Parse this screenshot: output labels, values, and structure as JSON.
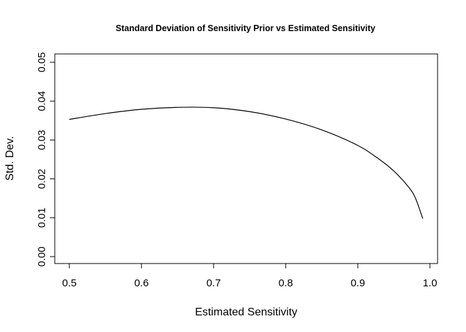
{
  "chart_data": {
    "type": "line",
    "title": "Standard Deviation of Sensitivity Prior vs Estimated Sensitivity",
    "xlabel": "Estimated Sensitivity",
    "ylabel": "Std. Dev.",
    "xlim": [
      0.48,
      1.0
    ],
    "ylim": [
      0.0,
      0.05
    ],
    "x_ticks": [
      "0.5",
      "0.6",
      "0.7",
      "0.8",
      "0.9",
      "1.0"
    ],
    "y_ticks": [
      "0.00",
      "0.01",
      "0.02",
      "0.03",
      "0.04",
      "0.05"
    ],
    "grid": false,
    "legend": "none",
    "line_color": "#000000",
    "series": [
      {
        "x": [
          0.5,
          0.55,
          0.6,
          0.65,
          0.7,
          0.75,
          0.8,
          0.85,
          0.9,
          0.93,
          0.95,
          0.97,
          0.98,
          0.99
        ],
        "values": [
          0.0353,
          0.0368,
          0.0379,
          0.0384,
          0.0383,
          0.0373,
          0.0354,
          0.0326,
          0.0286,
          0.025,
          0.022,
          0.018,
          0.015,
          0.0098
        ]
      }
    ]
  }
}
